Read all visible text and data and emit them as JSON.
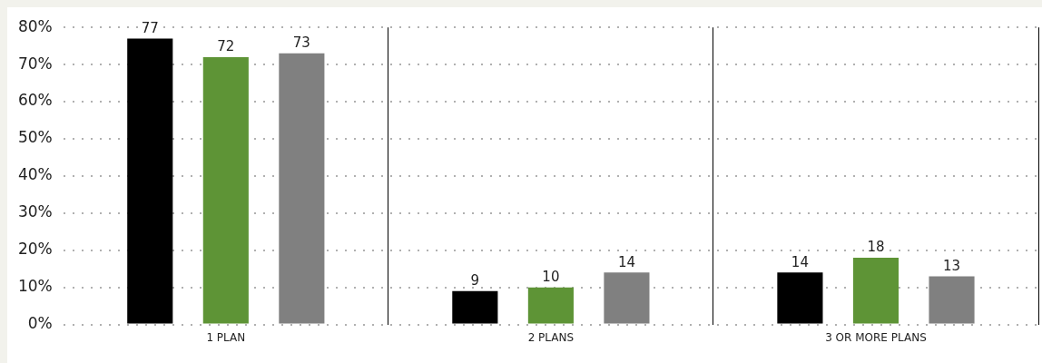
{
  "chart_data": {
    "type": "bar",
    "categories": [
      "1 PLAN",
      "2 PLANS",
      "3 OR MORE PLANS"
    ],
    "series": [
      {
        "color": "#000000",
        "values": [
          77,
          9,
          14
        ]
      },
      {
        "color": "#5e9436",
        "values": [
          72,
          10,
          18
        ]
      },
      {
        "color": "#808080",
        "values": [
          73,
          14,
          13
        ]
      }
    ],
    "ylim": [
      0,
      80
    ],
    "yticks": [
      {
        "value": 0,
        "label": "0%"
      },
      {
        "value": 10,
        "label": "10%"
      },
      {
        "value": 20,
        "label": "20%"
      },
      {
        "value": 30,
        "label": "30%"
      },
      {
        "value": 40,
        "label": "40%"
      },
      {
        "value": 50,
        "label": "50%"
      },
      {
        "value": 60,
        "label": "60%"
      },
      {
        "value": 70,
        "label": "70%"
      },
      {
        "value": 80,
        "label": "80%"
      }
    ],
    "grid": true,
    "legend": false,
    "data_labels": true
  }
}
